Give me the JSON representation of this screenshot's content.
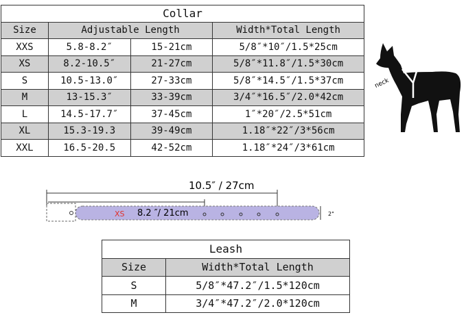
{
  "collar": {
    "title": "Collar",
    "headers": [
      "Size",
      "Adjustable Length",
      "Width*Total Length"
    ],
    "rows": [
      {
        "size": "XXS",
        "in": "5.8-8.2″",
        "cm": "15-21cm",
        "width": "5/8″*10″/1.5*25cm"
      },
      {
        "size": "XS",
        "in": "8.2-10.5″",
        "cm": "21-27cm",
        "width": "5/8″*11.8″/1.5*30cm"
      },
      {
        "size": "S",
        "in": "10.5-13.0″",
        "cm": "27-33cm",
        "width": "5/8″*14.5″/1.5*37cm"
      },
      {
        "size": "M",
        "in": "13-15.3″",
        "cm": "33-39cm",
        "width": "3/4″*16.5″/2.0*42cm"
      },
      {
        "size": "L",
        "in": "14.5-17.7″",
        "cm": "37-45cm",
        "width": "1″*20″/2.5*51cm"
      },
      {
        "size": "XL",
        "in": "15.3-19.3",
        "cm": "39-49cm",
        "width": "1.18″*22″/3*56cm"
      },
      {
        "size": "XXL",
        "in": "16.5-20.5",
        "cm": "42-52cm",
        "width": "1.18″*24″/3*61cm"
      }
    ]
  },
  "dog": {
    "label": "neck"
  },
  "belt": {
    "total": "10.5″ / 27cm",
    "min": "8.2 ″/ 21cm",
    "size": "XS",
    "width": "2\"",
    "color": "#b9b3e3",
    "size_color": "#e0302a"
  },
  "leash": {
    "title": "Leash",
    "headers": [
      "Size",
      "Width*Total Length"
    ],
    "rows": [
      {
        "size": "S",
        "width": "5/8″*47.2″/1.5*120cm"
      },
      {
        "size": "M",
        "width": "3/4″*47.2″/2.0*120cm"
      }
    ]
  }
}
